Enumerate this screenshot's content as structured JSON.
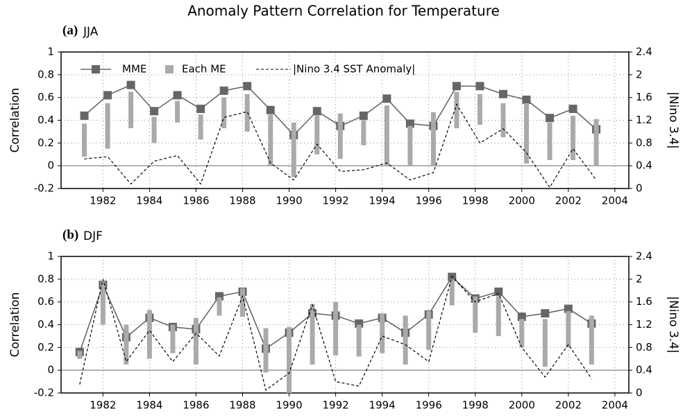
{
  "title": "Anomaly Pattern Correlation for Temperature",
  "chart_data": [
    {
      "type": "line",
      "panel_label": "(a)",
      "title": "JJA",
      "ylabel": "Correlation",
      "y2label": "|Nino 3.4|",
      "x": [
        1981.2,
        1982.2,
        1983.2,
        1984.2,
        1985.2,
        1986.2,
        1987.2,
        1988.2,
        1989.2,
        1990.2,
        1991.2,
        1992.2,
        1993.2,
        1994.2,
        1995.2,
        1996.2,
        1997.2,
        1998.2,
        1999.2,
        2000.2,
        2001.2,
        2002.2,
        2003.2
      ],
      "xlim": [
        1980.2,
        2004.6
      ],
      "xticks": [
        1982,
        1984,
        1986,
        1988,
        1990,
        1992,
        1994,
        1996,
        1998,
        2000,
        2002,
        2004
      ],
      "ylim": [
        -0.2,
        1
      ],
      "yticks": [
        -0.2,
        0,
        0.2,
        0.4,
        0.6,
        0.8,
        1
      ],
      "y2lim": [
        0,
        2.4
      ],
      "y2ticks": [
        0,
        0.4,
        0.8,
        1.2,
        1.6,
        2,
        2.4
      ],
      "grid": true,
      "legend": "upper left",
      "series": [
        {
          "name": "MME",
          "color": "#666666",
          "values": [
            0.44,
            0.62,
            0.71,
            0.48,
            0.62,
            0.5,
            0.66,
            0.7,
            0.49,
            0.27,
            0.48,
            0.35,
            0.44,
            0.59,
            0.37,
            0.35,
            0.7,
            0.7,
            0.63,
            0.58,
            0.42,
            0.5,
            0.32
          ]
        },
        {
          "name": "Each ME",
          "color": "#aaaaaa",
          "low": [
            0.08,
            0.15,
            0.33,
            0.2,
            0.38,
            0.23,
            0.33,
            0.3,
            0.0,
            -0.1,
            0.1,
            0.06,
            0.18,
            0.0,
            0.0,
            0.0,
            0.33,
            0.36,
            0.25,
            0.02,
            0.05,
            0.05,
            0.0
          ],
          "high": [
            0.37,
            0.55,
            0.65,
            0.43,
            0.57,
            0.45,
            0.6,
            0.63,
            0.45,
            0.38,
            0.44,
            0.46,
            0.4,
            0.53,
            0.35,
            0.47,
            0.65,
            0.63,
            0.55,
            0.55,
            0.38,
            0.44,
            0.41
          ]
        },
        {
          "name": "|Nino 3.4 SST Anomaly|",
          "color": "#000000",
          "axis": "y2",
          "dash": true,
          "values": [
            0.52,
            0.56,
            0.08,
            0.48,
            0.58,
            0.08,
            1.25,
            1.35,
            0.45,
            0.15,
            0.78,
            0.3,
            0.33,
            0.45,
            0.15,
            0.28,
            1.48,
            0.8,
            1.05,
            0.63,
            0.02,
            0.7,
            0.15
          ]
        }
      ]
    },
    {
      "type": "line",
      "panel_label": "(b)",
      "title": "DJF",
      "ylabel": "Correlation",
      "y2label": "|Nino 3.4|",
      "x": [
        1981,
        1982,
        1983,
        1984,
        1985,
        1986,
        1987,
        1988,
        1989,
        1990,
        1991,
        1992,
        1993,
        1994,
        1995,
        1996,
        1997,
        1998,
        1999,
        2000,
        2001,
        2002,
        2003
      ],
      "xlim": [
        1980.2,
        2004.6
      ],
      "xticks": [
        1982,
        1984,
        1986,
        1988,
        1990,
        1992,
        1994,
        1996,
        1998,
        2000,
        2002,
        2004
      ],
      "ylim": [
        -0.2,
        1
      ],
      "yticks": [
        -0.2,
        0,
        0.2,
        0.4,
        0.6,
        0.8,
        1
      ],
      "y2lim": [
        0,
        2.4
      ],
      "y2ticks": [
        0,
        0.4,
        0.8,
        1.2,
        1.6,
        2,
        2.4
      ],
      "grid": true,
      "series": [
        {
          "color": "#666666",
          "values": [
            0.16,
            0.75,
            0.29,
            0.46,
            0.38,
            0.36,
            0.65,
            0.69,
            0.19,
            0.33,
            0.5,
            0.48,
            0.41,
            0.46,
            0.33,
            0.49,
            0.82,
            0.63,
            0.69,
            0.47,
            0.5,
            0.54,
            0.41
          ]
        },
        {
          "color": "#aaaaaa",
          "low": [
            0.1,
            0.4,
            0.05,
            0.1,
            0.15,
            0.05,
            0.48,
            0.47,
            -0.02,
            -0.2,
            0.05,
            0.13,
            0.12,
            0.15,
            0.05,
            0.18,
            0.57,
            0.33,
            0.3,
            0.2,
            0.03,
            0.2,
            0.05
          ],
          "high": [
            0.17,
            0.78,
            0.4,
            0.53,
            0.4,
            0.46,
            0.64,
            0.72,
            0.37,
            0.38,
            0.58,
            0.6,
            0.4,
            0.5,
            0.48,
            0.52,
            0.8,
            0.65,
            0.65,
            0.45,
            0.45,
            0.52,
            0.48
          ]
        },
        {
          "color": "#000000",
          "axis": "y2",
          "dash": true,
          "values": [
            0.15,
            2.0,
            0.55,
            1.1,
            0.55,
            1.05,
            0.65,
            1.7,
            0.05,
            0.35,
            1.55,
            0.2,
            0.12,
            1.0,
            0.85,
            0.55,
            2.05,
            1.6,
            1.75,
            0.8,
            0.28,
            0.85,
            0.25
          ]
        }
      ]
    }
  ]
}
